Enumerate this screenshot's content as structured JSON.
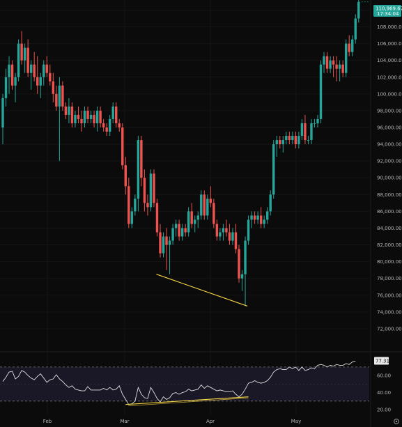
{
  "price_axis": {
    "labels": [
      "110,000.00",
      "108,000.00",
      "106,000.00",
      "104,000.00",
      "102,000.00",
      "100,000.00",
      "98,000.00",
      "96,000.00",
      "94,000.00",
      "92,000.00",
      "90,000.00",
      "88,000.00",
      "86,000.00",
      "84,000.00",
      "82,000.00",
      "80,000.00",
      "78,000.00",
      "76,000.00",
      "74,000.00",
      "72,000.00"
    ]
  },
  "last_price": {
    "value": "110,969.67",
    "countdown": "17:34:04"
  },
  "rsi": {
    "labels": [
      "60.00",
      "40.00",
      "20.00"
    ],
    "current": "77.31"
  },
  "time_axis": {
    "labels": [
      "Feb",
      "Mar",
      "Apr",
      "May"
    ]
  },
  "colors": {
    "background": "#0b0b0b",
    "up": "#26a69a",
    "down": "#ef5350",
    "trendline": "#f5d547",
    "rsi_line": "#e0e0e0",
    "rsi_band": "#1a1726"
  },
  "icons": {
    "settings": "gear-icon"
  },
  "chart_data": [
    {
      "type": "candlestick",
      "title": "",
      "ylim": [
        70500,
        111200
      ],
      "ohlc": [
        [
          96000,
          100000,
          94000,
          99500
        ],
        [
          99500,
          103000,
          98500,
          102000
        ],
        [
          102000,
          104500,
          100000,
          103500
        ],
        [
          103500,
          104000,
          100500,
          101000
        ],
        [
          101000,
          102500,
          99000,
          102000
        ],
        [
          102000,
          106500,
          101500,
          106000
        ],
        [
          106000,
          107500,
          103500,
          104000
        ],
        [
          104000,
          106000,
          102500,
          105500
        ],
        [
          105500,
          106500,
          102000,
          102500
        ],
        [
          102500,
          104000,
          100500,
          103500
        ],
        [
          103500,
          105000,
          101500,
          102000
        ],
        [
          102000,
          104500,
          100000,
          101000
        ],
        [
          101000,
          102500,
          99500,
          102000
        ],
        [
          102000,
          104000,
          101000,
          103500
        ],
        [
          103500,
          104500,
          102000,
          102500
        ],
        [
          102500,
          103500,
          101000,
          101500
        ],
        [
          101500,
          102500,
          99000,
          100000
        ],
        [
          100000,
          101000,
          98000,
          98500
        ],
        [
          98500,
          102000,
          92000,
          101000
        ],
        [
          101000,
          101500,
          98000,
          98500
        ],
        [
          98500,
          99000,
          97000,
          97500
        ],
        [
          97500,
          99500,
          96500,
          98500
        ],
        [
          98500,
          99000,
          96000,
          96500
        ],
        [
          96500,
          98000,
          96000,
          97500
        ],
        [
          97500,
          98500,
          96500,
          97000
        ],
        [
          97000,
          98000,
          95500,
          96500
        ],
        [
          96500,
          98500,
          96000,
          98000
        ],
        [
          98000,
          98500,
          96500,
          97000
        ],
        [
          97000,
          98000,
          96500,
          97500
        ],
        [
          97500,
          98000,
          96000,
          96500
        ],
        [
          96500,
          98500,
          95500,
          98000
        ],
        [
          98000,
          98500,
          96000,
          96500
        ],
        [
          96500,
          97000,
          95500,
          96000
        ],
        [
          96000,
          96500,
          95000,
          95500
        ],
        [
          95500,
          97500,
          95000,
          97000
        ],
        [
          97000,
          99000,
          96500,
          98500
        ],
        [
          98500,
          99000,
          96000,
          96500
        ],
        [
          96500,
          97000,
          95500,
          96000
        ],
        [
          96000,
          96500,
          91000,
          91500
        ],
        [
          91500,
          92500,
          88000,
          89000
        ],
        [
          89000,
          90000,
          84000,
          84500
        ],
        [
          84500,
          86500,
          84000,
          86000
        ],
        [
          86000,
          88000,
          85500,
          87500
        ],
        [
          87500,
          95000,
          86000,
          94500
        ],
        [
          94500,
          95000,
          89000,
          90000
        ],
        [
          90000,
          91000,
          86000,
          87000
        ],
        [
          87000,
          88000,
          85500,
          86500
        ],
        [
          86500,
          91000,
          86000,
          90500
        ],
        [
          90500,
          91000,
          86500,
          87000
        ],
        [
          87000,
          87500,
          83000,
          83500
        ],
        [
          83500,
          84500,
          80500,
          81000
        ],
        [
          81000,
          83500,
          80500,
          83000
        ],
        [
          83000,
          84000,
          79000,
          82000
        ],
        [
          82000,
          83000,
          78500,
          82500
        ],
        [
          82500,
          84500,
          82000,
          84000
        ],
        [
          84000,
          85000,
          83000,
          84500
        ],
        [
          84500,
          85000,
          82500,
          83000
        ],
        [
          83000,
          84500,
          82500,
          84000
        ],
        [
          84000,
          84500,
          83000,
          83500
        ],
        [
          83500,
          86500,
          83000,
          86000
        ],
        [
          86000,
          87000,
          84000,
          84500
        ],
        [
          84500,
          85500,
          83500,
          85000
        ],
        [
          85000,
          86000,
          84000,
          85500
        ],
        [
          85500,
          88500,
          85000,
          88000
        ],
        [
          88000,
          88500,
          85000,
          85500
        ],
        [
          85500,
          88000,
          85000,
          87500
        ],
        [
          87500,
          89000,
          86500,
          87000
        ],
        [
          87000,
          87500,
          84000,
          84500
        ],
        [
          84500,
          85000,
          82500,
          83000
        ],
        [
          83000,
          84000,
          82500,
          83500
        ],
        [
          83500,
          84500,
          82500,
          84000
        ],
        [
          84000,
          85000,
          83000,
          83500
        ],
        [
          83500,
          84500,
          82000,
          82500
        ],
        [
          82500,
          84000,
          82000,
          83500
        ],
        [
          83500,
          84500,
          81000,
          81500
        ],
        [
          81500,
          82000,
          77500,
          78000
        ],
        [
          78000,
          79000,
          76500,
          78500
        ],
        [
          78500,
          83000,
          74700,
          82500
        ],
        [
          82500,
          85500,
          82000,
          85000
        ],
        [
          85000,
          86000,
          84000,
          85500
        ],
        [
          85500,
          86000,
          84500,
          85000
        ],
        [
          85000,
          86000,
          84500,
          85500
        ],
        [
          85500,
          86500,
          84000,
          84500
        ],
        [
          84500,
          85500,
          84000,
          85000
        ],
        [
          85000,
          86500,
          84500,
          86000
        ],
        [
          86000,
          88500,
          85500,
          88000
        ],
        [
          88000,
          94500,
          87500,
          94000
        ],
        [
          94000,
          95000,
          92500,
          94500
        ],
        [
          94500,
          95000,
          93500,
          94000
        ],
        [
          94000,
          95000,
          93000,
          94500
        ],
        [
          94500,
          95500,
          94000,
          95000
        ],
        [
          95000,
          95500,
          94000,
          94500
        ],
        [
          94500,
          95500,
          94000,
          95000
        ],
        [
          95000,
          95500,
          93500,
          94000
        ],
        [
          94000,
          95500,
          93500,
          95000
        ],
        [
          95000,
          97000,
          94500,
          96500
        ],
        [
          96500,
          97500,
          94000,
          94500
        ],
        [
          94500,
          95000,
          94000,
          94500
        ],
        [
          94500,
          97000,
          94000,
          96500
        ],
        [
          96500,
          97000,
          96000,
          96500
        ],
        [
          96500,
          97500,
          96000,
          97000
        ],
        [
          97000,
          104000,
          96500,
          103500
        ],
        [
          103500,
          105000,
          102500,
          104500
        ],
        [
          104500,
          105000,
          102500,
          103000
        ],
        [
          103000,
          104500,
          102500,
          104000
        ],
        [
          104000,
          104500,
          102000,
          103500
        ],
        [
          103500,
          104500,
          101500,
          103000
        ],
        [
          103000,
          104000,
          101500,
          103500
        ],
        [
          103500,
          104000,
          102000,
          102500
        ],
        [
          102500,
          106500,
          102000,
          106000
        ],
        [
          106000,
          107000,
          104500,
          105000
        ],
        [
          105000,
          107000,
          104500,
          106500
        ],
        [
          106500,
          109500,
          106000,
          109000
        ],
        [
          109000,
          111200,
          108500,
          110970
        ]
      ],
      "trendline": {
        "from": [
          49,
          78500
        ],
        "to": [
          77,
          74700
        ]
      }
    },
    {
      "type": "line",
      "title": "",
      "ylim": [
        20,
        85
      ],
      "band": [
        30,
        70
      ],
      "x_labels": [
        "Feb",
        "Mar",
        "Apr",
        "May"
      ],
      "values": [
        53,
        58,
        64,
        65,
        56,
        59,
        66,
        64,
        60,
        57,
        55,
        59,
        62,
        57,
        52,
        55,
        56,
        61,
        56,
        53,
        49,
        46,
        48,
        44,
        43,
        42,
        42,
        47,
        43,
        43,
        43,
        43,
        45,
        43,
        46,
        43,
        44,
        48,
        38,
        32,
        26,
        27,
        30,
        46,
        38,
        34,
        33,
        46,
        40,
        33,
        29,
        35,
        32,
        34,
        39,
        40,
        38,
        40,
        41,
        44,
        42,
        43,
        44,
        49,
        45,
        48,
        46,
        44,
        42,
        43,
        42,
        41,
        41,
        42,
        38,
        35,
        38,
        44,
        51,
        52,
        54,
        52,
        51,
        52,
        54,
        58,
        64,
        67,
        68,
        67,
        67,
        70,
        68,
        70,
        66,
        70,
        66,
        67,
        69,
        68,
        72,
        73,
        72,
        70,
        72,
        71,
        73,
        72,
        72,
        74,
        73,
        76,
        77
      ],
      "trendline": {
        "from": [
          39,
          26
        ],
        "to": [
          78,
          35
        ]
      }
    }
  ]
}
